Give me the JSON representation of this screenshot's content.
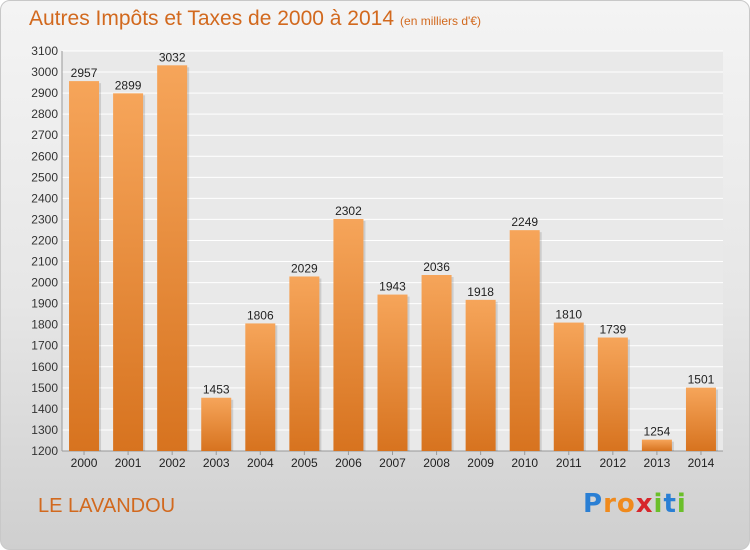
{
  "title": "Autres Impôts et Taxes de 2000 à 2014",
  "title_unit": "(en milliers d'€)",
  "place": "LE LAVANDOU",
  "logo": {
    "letters": [
      "P",
      "r",
      "o",
      "x",
      "i",
      "t",
      "i"
    ],
    "colors": [
      "#2a7fd4",
      "#f08a1c",
      "#f08a1c",
      "#d7262b",
      "#6bbf2a",
      "#2a7fd4",
      "#6bbf2a"
    ]
  },
  "colors": {
    "accent": "#d2691e",
    "bar_light": "#f6a55a",
    "bar_dark": "#d7731f"
  },
  "chart_data": {
    "type": "bar",
    "categories": [
      "2000",
      "2001",
      "2002",
      "2003",
      "2004",
      "2005",
      "2006",
      "2007",
      "2008",
      "2009",
      "2010",
      "2011",
      "2012",
      "2013",
      "2014"
    ],
    "values": [
      2957,
      2899,
      3032,
      1453,
      1806,
      2029,
      2302,
      1943,
      2036,
      1918,
      2249,
      1810,
      1739,
      1254,
      1501
    ],
    "ylim": [
      1200,
      3100
    ],
    "yticks": [
      1200,
      1300,
      1400,
      1500,
      1600,
      1700,
      1800,
      1900,
      2000,
      2100,
      2200,
      2300,
      2400,
      2500,
      2600,
      2700,
      2800,
      2900,
      3000,
      3100
    ],
    "grid": true,
    "xlabel": "",
    "ylabel": ""
  }
}
